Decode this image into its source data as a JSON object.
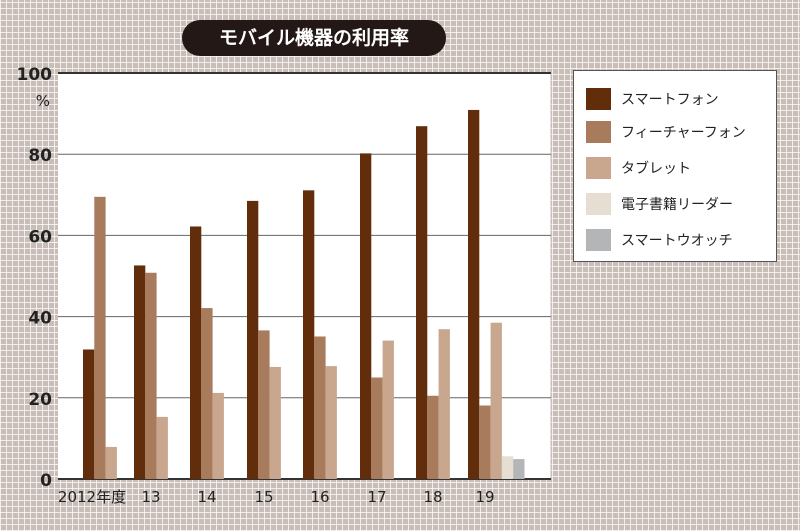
{
  "chart_data": {
    "type": "bar",
    "title": "モバイル機器の利用率",
    "ylabel": "%",
    "ylim": [
      0,
      100
    ],
    "yticks": [
      0,
      20,
      40,
      60,
      80,
      100
    ],
    "categories": [
      "2012年度",
      "13",
      "14",
      "15",
      "16",
      "17",
      "18",
      "19"
    ],
    "grid": "horizontal",
    "legend_position": "right",
    "series": [
      {
        "name": "スマートフォン",
        "color": "#622d0a",
        "values": [
          31.9,
          52.6,
          62.2,
          68.5,
          71.1,
          80.2,
          86.9,
          90.9
        ]
      },
      {
        "name": "フィーチャーフォン",
        "color": "#a87b5c",
        "values": [
          69.5,
          50.8,
          42.1,
          36.6,
          35.1,
          25.0,
          20.5,
          18.1
        ]
      },
      {
        "name": "タブレット",
        "color": "#c8a78e",
        "values": [
          7.9,
          15.3,
          21.2,
          27.6,
          27.8,
          34.1,
          36.9,
          38.5
        ]
      },
      {
        "name": "電子書籍リーダー",
        "color": "#e6ddd3",
        "values": [
          null,
          null,
          null,
          null,
          null,
          null,
          null,
          5.6
        ]
      },
      {
        "name": "スマートウオッチ",
        "color": "#b4b5b6",
        "values": [
          null,
          null,
          null,
          null,
          null,
          null,
          null,
          4.9
        ]
      }
    ]
  }
}
